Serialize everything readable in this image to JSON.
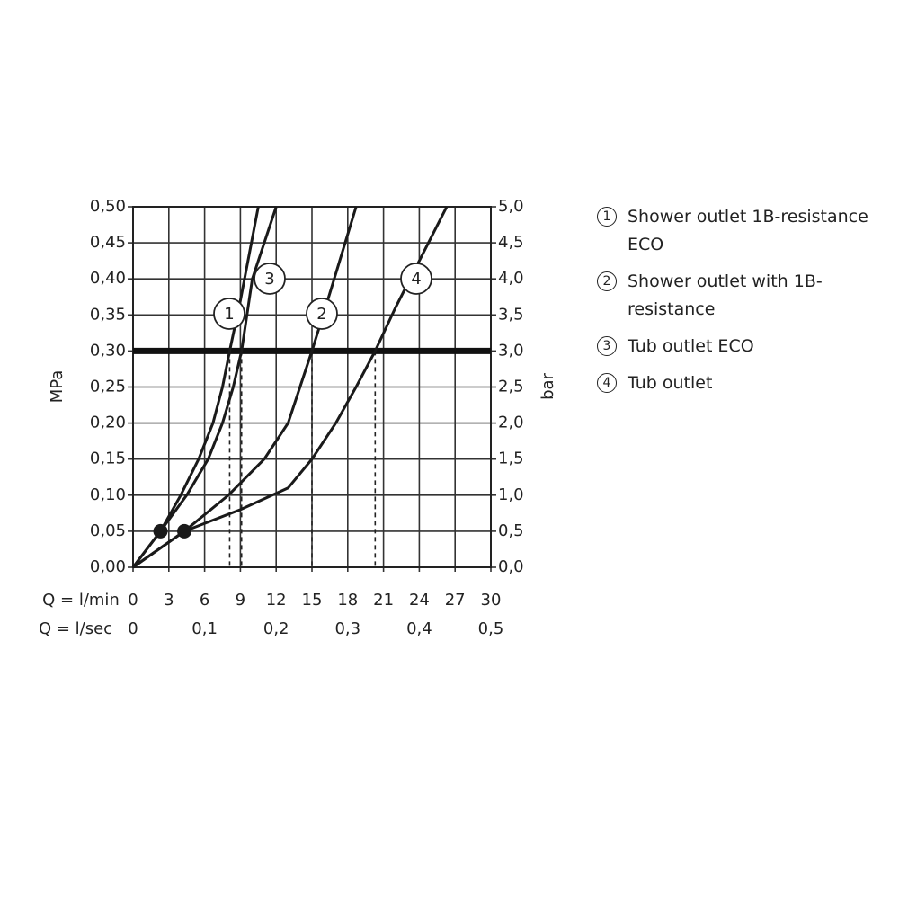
{
  "chart_data": {
    "type": "line",
    "xlabel": "Q = l/min",
    "x2label": "Q = l/sec",
    "ylabel": "MPa",
    "y2label": "bar",
    "xlim": [
      0,
      30
    ],
    "xticks": [
      0,
      3,
      6,
      9,
      12,
      15,
      18,
      21,
      24,
      27,
      30
    ],
    "x2lim": [
      0,
      0.5
    ],
    "x2ticks": [
      0,
      {
        "value": 0.1,
        "label": "0,1"
      },
      {
        "value": 0.2,
        "label": "0,2"
      },
      {
        "value": 0.3,
        "label": "0,3"
      },
      {
        "value": 0.4,
        "label": "0,4"
      },
      {
        "value": 0.5,
        "label": "0,5"
      }
    ],
    "ylim": [
      0,
      0.5
    ],
    "yticks": [
      {
        "value": 0,
        "label": "0,00"
      },
      {
        "value": 0.05,
        "label": "0,05"
      },
      {
        "value": 0.1,
        "label": "0,10"
      },
      {
        "value": 0.15,
        "label": "0,15"
      },
      {
        "value": 0.2,
        "label": "0,20"
      },
      {
        "value": 0.25,
        "label": "0,25"
      },
      {
        "value": 0.3,
        "label": "0,30"
      },
      {
        "value": 0.35,
        "label": "0,35"
      },
      {
        "value": 0.4,
        "label": "0,40"
      },
      {
        "value": 0.45,
        "label": "0,45"
      },
      {
        "value": 0.5,
        "label": "0,50"
      }
    ],
    "y2lim": [
      0,
      5
    ],
    "y2ticks": [
      {
        "value": 0,
        "label": "0,0"
      },
      {
        "value": 0.5,
        "label": "0,5"
      },
      {
        "value": 1,
        "label": "1,0"
      },
      {
        "value": 1.5,
        "label": "1,5"
      },
      {
        "value": 2,
        "label": "2,0"
      },
      {
        "value": 2.5,
        "label": "2,5"
      },
      {
        "value": 3,
        "label": "3,0"
      },
      {
        "value": 3.5,
        "label": "3,5"
      },
      {
        "value": 4,
        "label": "4,0"
      },
      {
        "value": 4.5,
        "label": "4,5"
      },
      {
        "value": 5,
        "label": "5,0"
      }
    ],
    "grid": true,
    "reference_line": 0.3,
    "drop_lines": [
      8.1,
      9.1,
      15,
      20.3
    ],
    "markers": {
      "x": [
        2.3,
        4.3
      ],
      "values": [
        0.05,
        0.05
      ],
      "color": "#1a1a1a"
    },
    "series": [
      {
        "label": "1",
        "name": "Shower outlet 1B-resistance ECO",
        "color": "#1a1a1a",
        "x": [
          0,
          2.3,
          4,
          5.5,
          6.7,
          7.5,
          8.1,
          9,
          10.5
        ],
        "values": [
          0,
          0.05,
          0.1,
          0.15,
          0.2,
          0.25,
          0.3,
          0.37,
          0.5
        ]
      },
      {
        "label": "2",
        "name": "Shower outlet with 1B-resistance",
        "color": "#1a1a1a",
        "x": [
          0,
          4.3,
          8,
          11,
          13,
          14,
          15,
          16.5,
          18.7
        ],
        "values": [
          0,
          0.05,
          0.1,
          0.15,
          0.2,
          0.25,
          0.3,
          0.38,
          0.5
        ]
      },
      {
        "label": "3",
        "name": "Tub outlet ECO",
        "color": "#1a1a1a",
        "x": [
          0,
          2.3,
          4.5,
          6.3,
          7.5,
          8.4,
          9.1,
          10,
          12
        ],
        "values": [
          0,
          0.05,
          0.1,
          0.15,
          0.2,
          0.25,
          0.3,
          0.4,
          0.5
        ]
      },
      {
        "label": "4",
        "name": "Tub outlet",
        "color": "#1a1a1a",
        "x": [
          0,
          4.3,
          9,
          13,
          15,
          17,
          18.7,
          20.3,
          22,
          26.3
        ],
        "values": [
          0,
          0.05,
          0.08,
          0.11,
          0.15,
          0.2,
          0.25,
          0.3,
          0.36,
          0.5
        ]
      }
    ]
  }
}
